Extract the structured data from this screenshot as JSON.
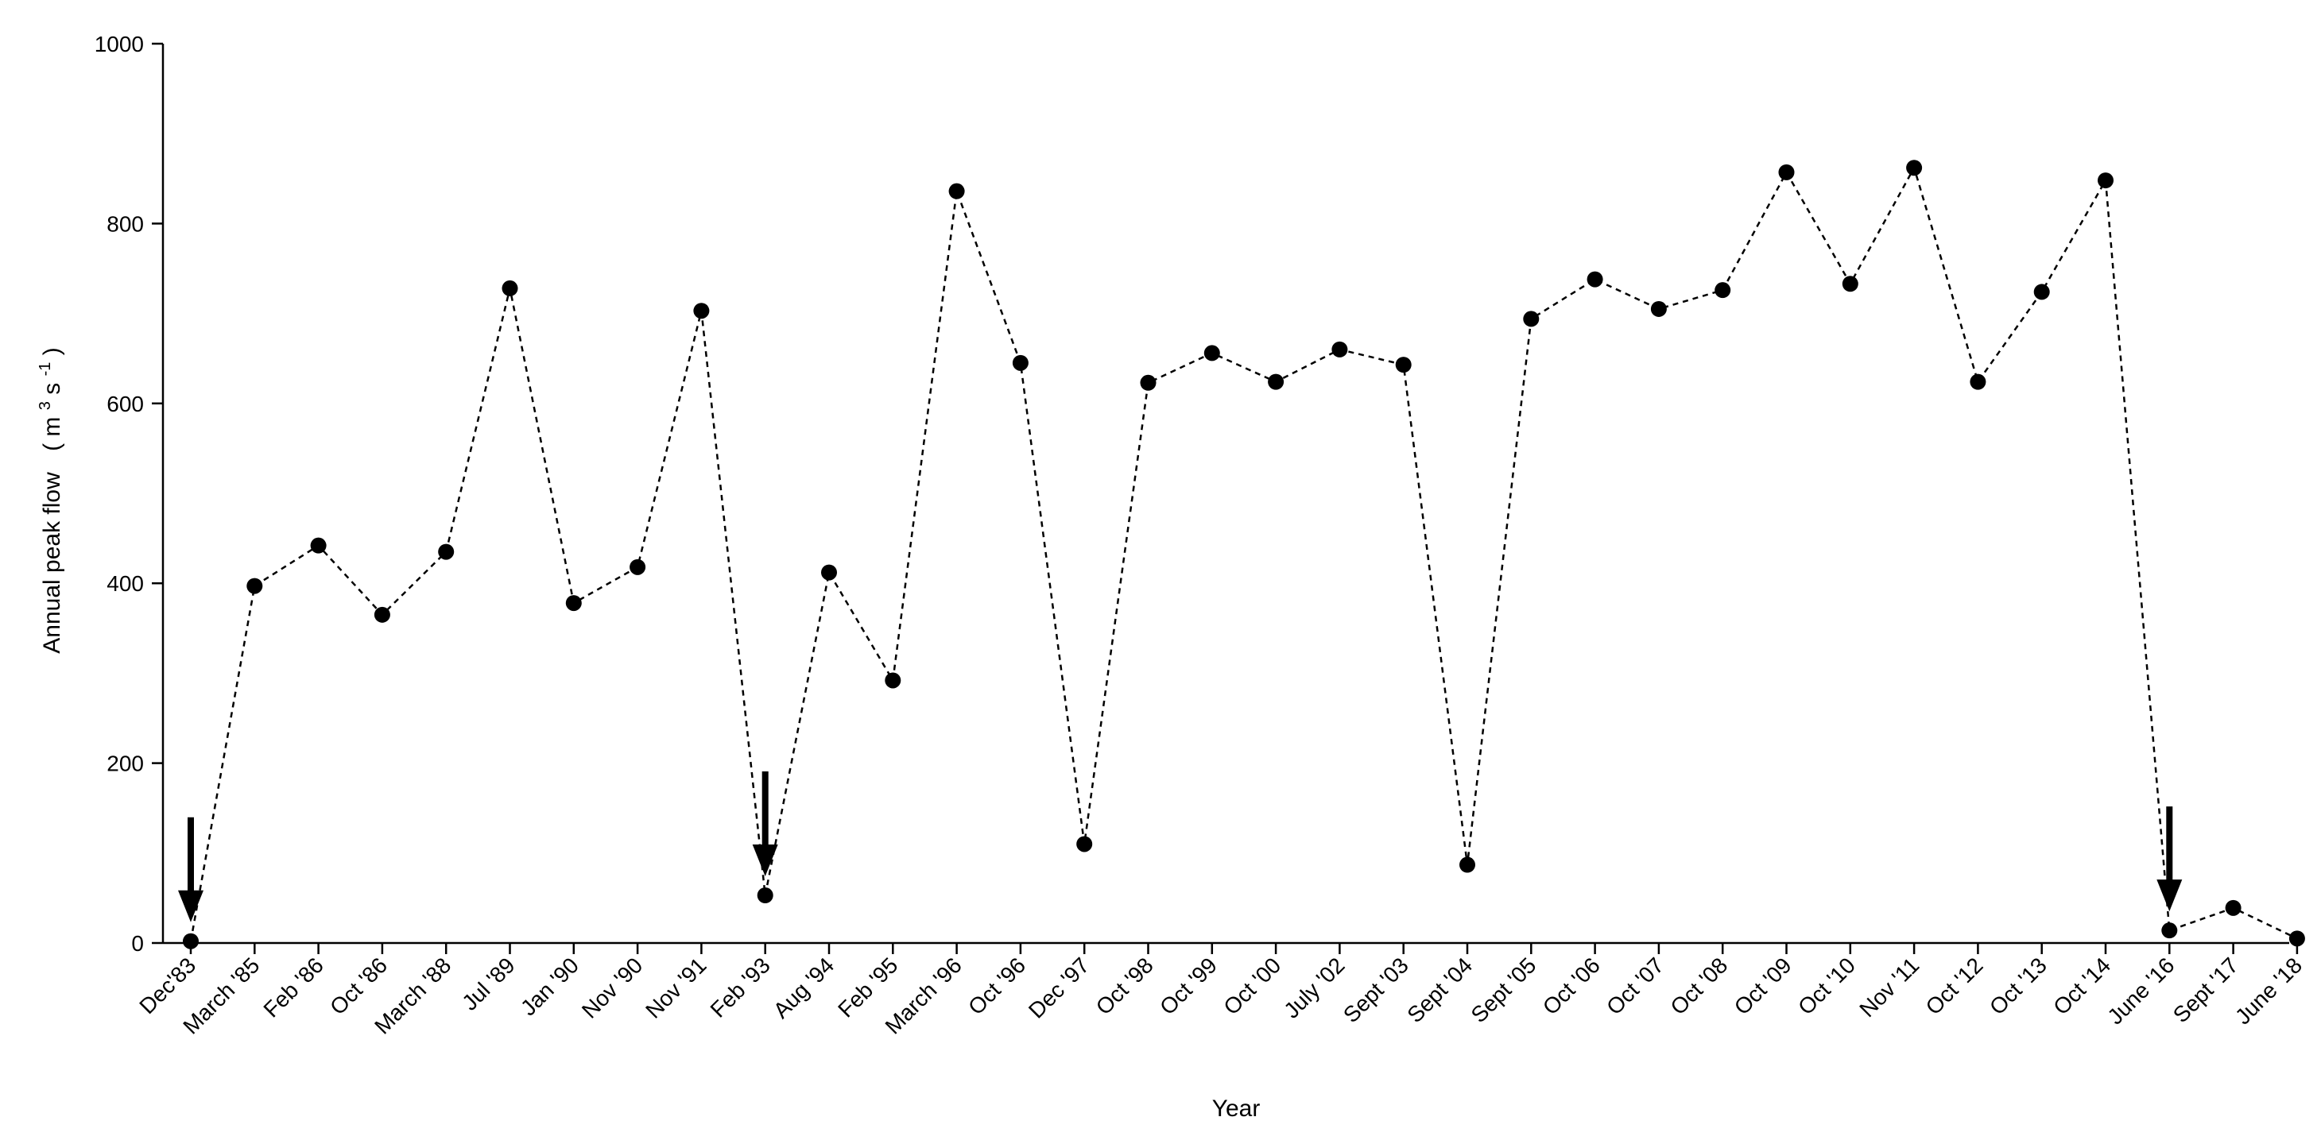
{
  "chart_data": {
    "type": "line",
    "title": "",
    "xlabel": "Year",
    "ylabel": "Annual peak flow",
    "ylabel_unit": {
      "base": "m",
      "sup1": "3",
      "mid": "s",
      "sup2": "-1"
    },
    "ylim": [
      0,
      1000
    ],
    "yticks": [
      "0",
      "200",
      "400",
      "600",
      "800",
      "1000"
    ],
    "grid": false,
    "line_style": "dashed",
    "marker": "filled-circle",
    "color": "#000000",
    "categories": [
      "Dec'83",
      "March '85",
      "Feb '86",
      "Oct '86",
      "March '88",
      "Jul '89",
      "Jan '90",
      "Nov '90",
      "Nov '91",
      "Feb '93",
      "Aug '94",
      "Feb '95",
      "March '96",
      "Oct '96",
      "Dec '97",
      "Oct '98",
      "Oct '99",
      "Oct '00",
      "July '02",
      "Sept '03",
      "Sept '04",
      "Sept '05",
      "Oct '06",
      "Oct '07",
      "Oct '08",
      "Oct '09",
      "Oct '10",
      "Nov '11",
      "Oct '12",
      "Oct '13",
      "Oct '14",
      "June '16",
      "Sept '17",
      "June '18"
    ],
    "values": [
      2,
      397,
      442,
      365,
      435,
      728,
      378,
      418,
      703,
      53,
      412,
      292,
      836,
      645,
      110,
      623,
      656,
      624,
      660,
      643,
      87,
      694,
      738,
      705,
      726,
      857,
      733,
      862,
      624,
      724,
      848,
      14,
      39,
      5
    ],
    "annotations": [
      {
        "type": "down-arrow",
        "category": "Dec'83"
      },
      {
        "type": "down-arrow",
        "category": "Feb '93"
      },
      {
        "type": "down-arrow",
        "category": "June '16"
      }
    ]
  }
}
